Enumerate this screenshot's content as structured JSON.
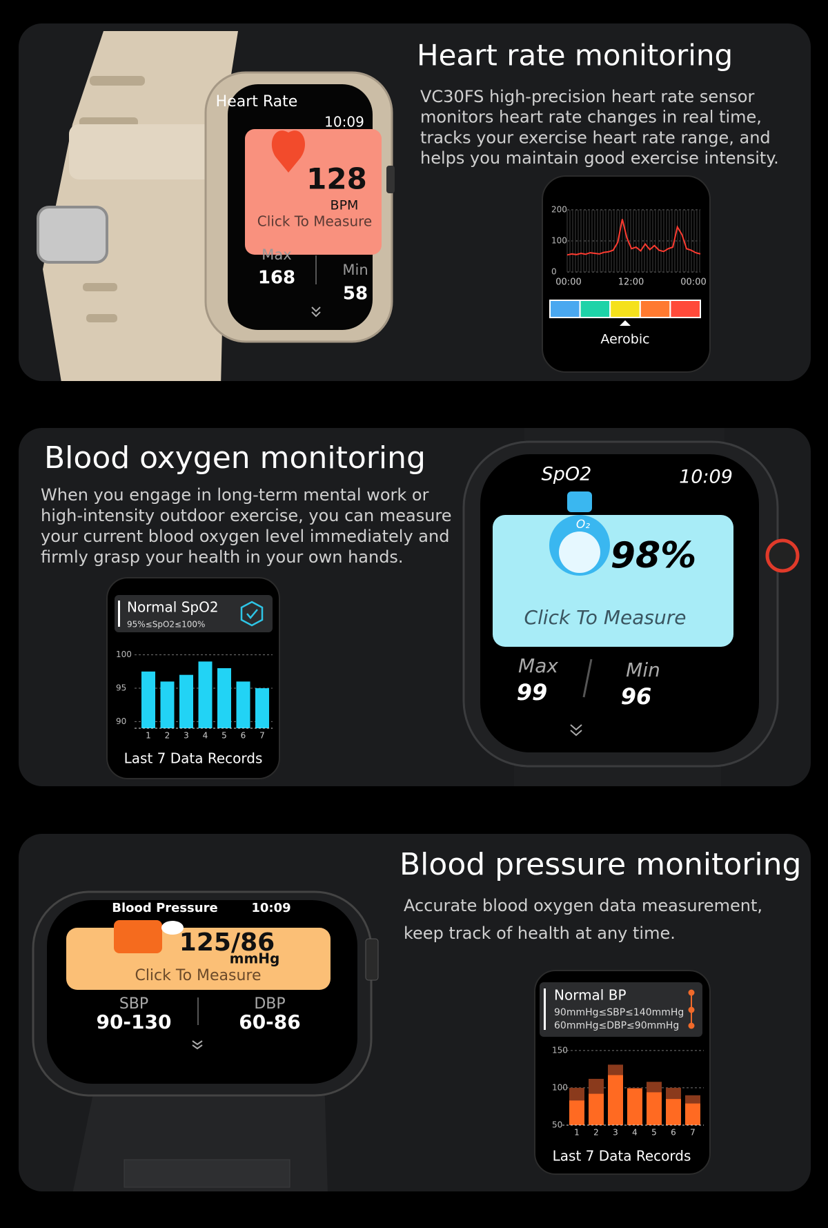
{
  "sections": [
    {
      "title": "Heart rate monitoring",
      "description": [
        "VC30FS high-precision heart rate sensor",
        "monitors heart rate changes in real time,",
        "tracks your exercise heart rate range, and",
        "helps you maintain good exercise intensity."
      ],
      "watch": {
        "title": "Heart Rate",
        "time": "10:09",
        "reading": "128",
        "unit": "BPM",
        "action": "Click To Measure",
        "left_label": "Max",
        "left_value": "168",
        "right_label": "Min",
        "right_value": "58"
      }
    },
    {
      "title": "Blood oxygen monitoring",
      "description": [
        "When you engage in long-term mental work or",
        "high-intensity outdoor exercise, you can measure",
        "your current blood oxygen level immediately and",
        "firmly grasp your health in your own hands."
      ],
      "watch": {
        "title": "SpO2",
        "time": "10:09",
        "icon_label": "O₂",
        "reading": "98%",
        "action": "Click To Measure",
        "left_label": "Max",
        "left_value": "99",
        "right_label": "Min",
        "right_value": "96"
      }
    },
    {
      "title": "Blood pressure monitoring",
      "description": [
        "Accurate blood oxygen data measurement,",
        "keep track of health at any time."
      ],
      "watch": {
        "title": "Blood Pressure",
        "time": "10:09",
        "reading": "125/86",
        "unit": "mmHg",
        "action": "Click To Measure",
        "left_label": "SBP",
        "left_value": "90-130",
        "right_label": "DBP",
        "right_value": "60-86"
      }
    }
  ],
  "chart_data": [
    {
      "type": "line",
      "color": "#ff3b30",
      "values": [
        55,
        58,
        56,
        60,
        57,
        62,
        60,
        58,
        63,
        65,
        70,
        95,
        170,
        110,
        75,
        80,
        68,
        90,
        72,
        85,
        70,
        66,
        75,
        80,
        145,
        120,
        75,
        70,
        62,
        58
      ],
      "ylim": [
        0,
        200
      ],
      "yticks": [
        0,
        100,
        200
      ],
      "x_labels": [
        "00:00",
        "12:00",
        "00:00"
      ],
      "zone_colors": [
        "#4aa8f0",
        "#1ed3a8",
        "#f5e11c",
        "#ff7a30",
        "#ff4a3a"
      ],
      "zone_label": "Aerobic"
    },
    {
      "type": "bar",
      "title": "Normal SpO2",
      "subtitle": "95%≤SpO2≤100%",
      "categories": [
        "1",
        "2",
        "3",
        "4",
        "5",
        "6",
        "7"
      ],
      "values": [
        97.5,
        96,
        97,
        99,
        98,
        96,
        95
      ],
      "color": "#22d3f5",
      "ylim": [
        89,
        101
      ],
      "yticks": [
        90,
        95,
        100
      ],
      "caption": "Last 7 Data Records"
    },
    {
      "type": "bar",
      "title": "Normal BP",
      "notes": [
        "90mmHg≤SBP≤140mmHg",
        "60mmHg≤DBP≤90mmHg"
      ],
      "categories": [
        "1",
        "2",
        "3",
        "4",
        "5",
        "6",
        "7"
      ],
      "series": [
        {
          "color": "#8a3a1c",
          "values": [
            100,
            112,
            131,
            100,
            108,
            100,
            90
          ]
        },
        {
          "color": "#ff6a22",
          "values": [
            83,
            92,
            117,
            99,
            94,
            85,
            79
          ]
        }
      ],
      "ylim": [
        50,
        160
      ],
      "yticks": [
        50,
        100,
        150
      ],
      "caption": "Last 7 Data Records"
    }
  ]
}
